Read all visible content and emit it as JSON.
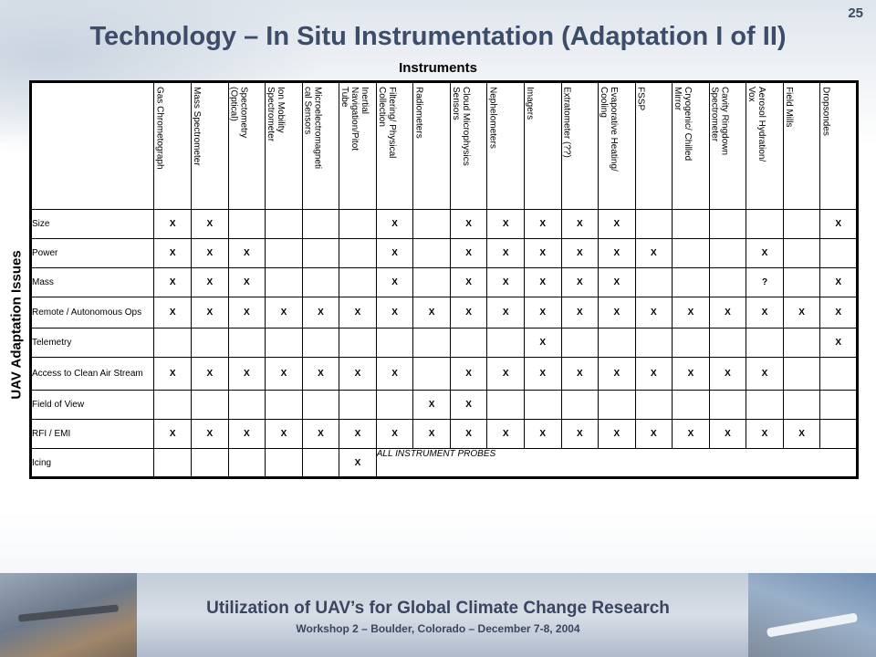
{
  "slide": {
    "number": "25",
    "title": "Technology – In Situ Instrumentation (Adaptation I of II)",
    "subtitle": "Instruments",
    "side_label": "UAV Adaptation Issues"
  },
  "instruments": [
    "Gas Chrometograph",
    "Mass Spectrometer",
    "Spectometry\n(Optical)",
    "Ion Mobility\nSpectrometer",
    "Microelectromagneti\ncal Sensors",
    "Inertial\nNavigation/Pitot\nTube",
    "Filtering/ Physical\nCollection",
    "Radiometers",
    "Cloud Microphysics\nSensors",
    "Nephelometers",
    "Imagers",
    "Extratometer (??)",
    "Evaporative Heating/\nCooling",
    "FSSP",
    "Cryogenic/ Chilled\nMirror",
    "Cavity Ringdown\nSpectrometer",
    "Aerosol Hydration/\nVox",
    "Field Mills",
    "Dropsondes"
  ],
  "issues": [
    {
      "label": "Size",
      "marks": [
        "X",
        "X",
        "",
        "",
        "",
        "",
        "X",
        "",
        "X",
        "X",
        "X",
        "X",
        "X",
        "",
        "",
        "",
        "",
        "",
        "X"
      ]
    },
    {
      "label": "Power",
      "marks": [
        "X",
        "X",
        "X",
        "",
        "",
        "",
        "X",
        "",
        "X",
        "X",
        "X",
        "X",
        "X",
        "X",
        "",
        "",
        "X",
        "",
        ""
      ]
    },
    {
      "label": "Mass",
      "marks": [
        "X",
        "X",
        "X",
        "",
        "",
        "",
        "X",
        "",
        "X",
        "X",
        "X",
        "X",
        "X",
        "",
        "",
        "",
        "?",
        "",
        "X"
      ]
    },
    {
      "label": "Remote / Autonomous Ops",
      "marks": [
        "X",
        "X",
        "X",
        "X",
        "X",
        "X",
        "X",
        "X",
        "X",
        "X",
        "X",
        "X",
        "X",
        "X",
        "X",
        "X",
        "X",
        "X",
        "X"
      ]
    },
    {
      "label": "Telemetry",
      "marks": [
        "",
        "",
        "",
        "",
        "",
        "",
        "",
        "",
        "",
        "",
        "X",
        "",
        "",
        "",
        "",
        "",
        "",
        "",
        "X"
      ]
    },
    {
      "label": "Access to Clean Air Stream",
      "marks": [
        "X",
        "X",
        "X",
        "X",
        "X",
        "X",
        "X",
        "",
        "X",
        "X",
        "X",
        "X",
        "X",
        "X",
        "X",
        "X",
        "X",
        "",
        ""
      ]
    },
    {
      "label": "Field of View",
      "marks": [
        "",
        "",
        "",
        "",
        "",
        "",
        "",
        "X",
        "X",
        "",
        "",
        "",
        "",
        "",
        "",
        "",
        "",
        "",
        ""
      ]
    },
    {
      "label": "RFI  / EMI",
      "marks": [
        "X",
        "X",
        "X",
        "X",
        "X",
        "X",
        "X",
        "X",
        "X",
        "X",
        "X",
        "X",
        "X",
        "X",
        "X",
        "X",
        "X",
        "X",
        ""
      ]
    },
    {
      "label": "Icing",
      "marks": [
        "",
        "",
        "",
        "",
        "",
        "X"
      ],
      "note": "ALL INSTRUMENT PROBES"
    }
  ],
  "footer": {
    "title": "Utilization of UAV’s for Global Climate Change Research",
    "subtitle": "Workshop 2 – Boulder, Colorado – December 7-8, 2004"
  }
}
